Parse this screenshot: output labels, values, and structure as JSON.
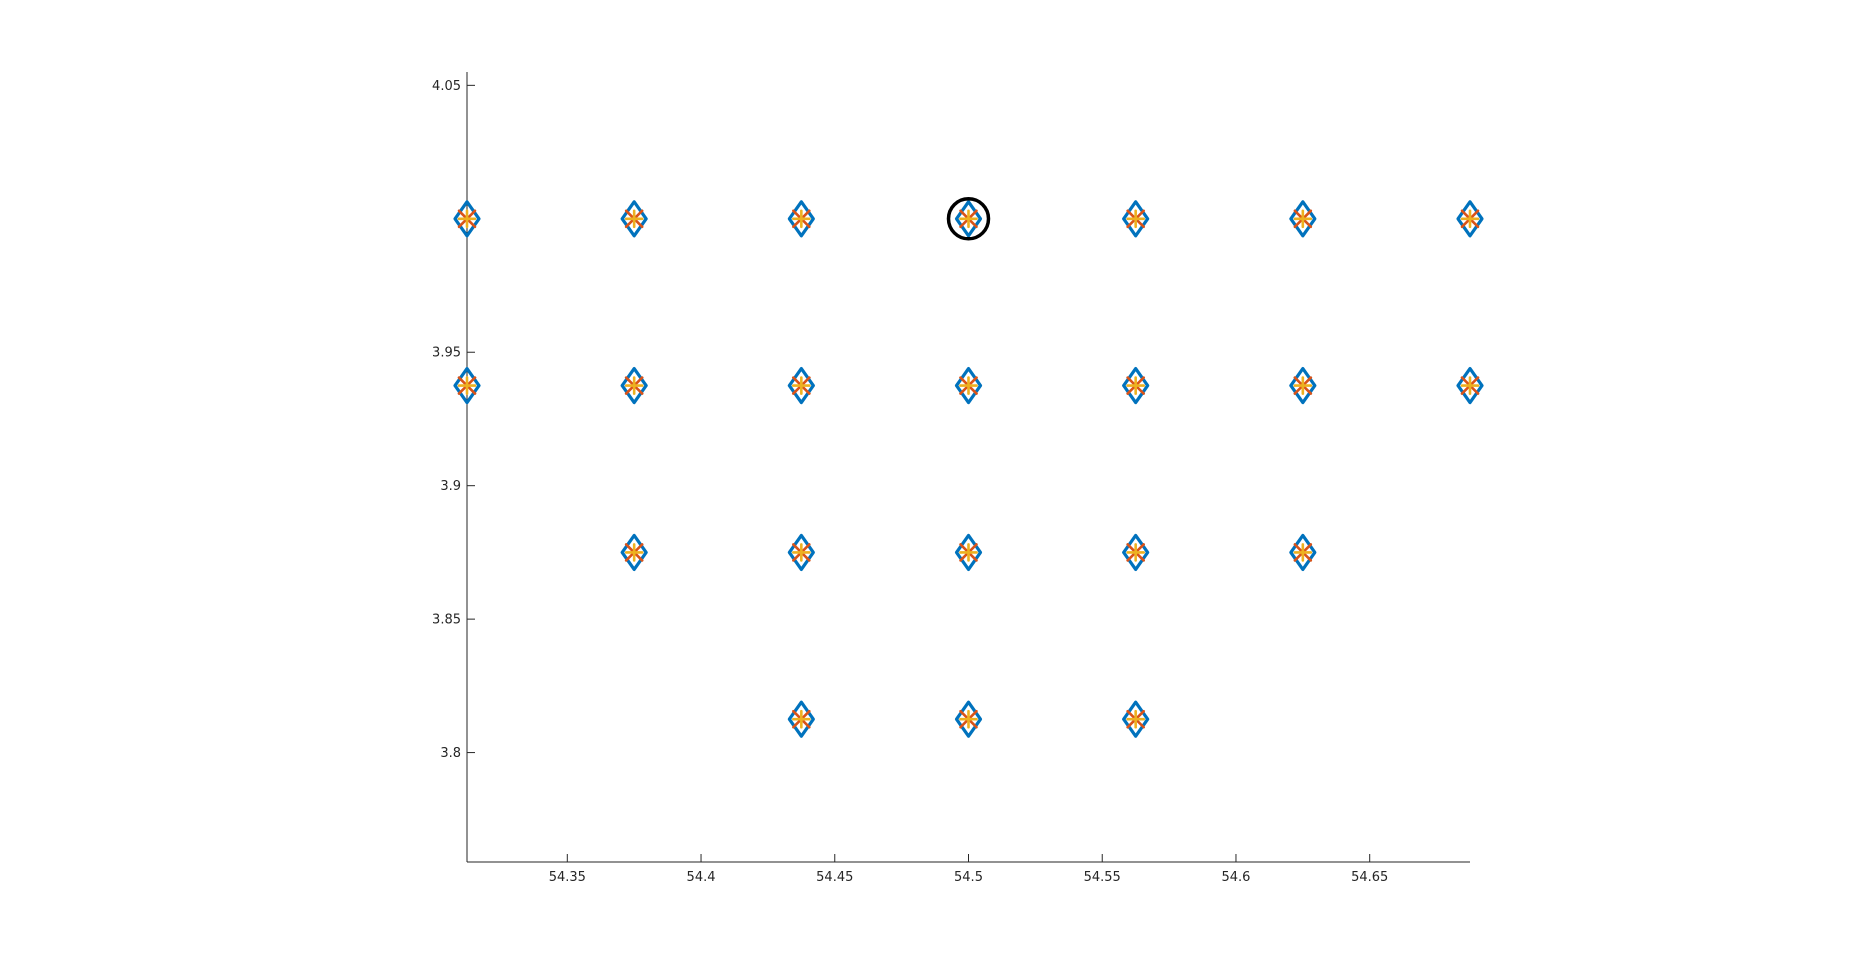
{
  "chart_data": {
    "type": "scatter",
    "title": "",
    "xlabel": "",
    "ylabel": "",
    "xlim": [
      54.3125,
      54.6875
    ],
    "ylim": [
      3.759,
      4.055
    ],
    "xticks": [
      54.35,
      54.4,
      54.45,
      54.5,
      54.55,
      54.6,
      54.65
    ],
    "xtick_labels": [
      "54.35",
      "54.4",
      "54.45",
      "54.5",
      "54.55",
      "54.6",
      "54.65"
    ],
    "yticks": [
      3.8,
      3.85,
      3.9,
      3.95,
      4.05
    ],
    "ytick_labels": [
      "3.8",
      "3.85",
      "3.9",
      "3.95",
      "4.05"
    ],
    "grid": false,
    "legend": "none",
    "series": [
      {
        "marker": "diamond",
        "color": "#0072BD",
        "points": [
          [
            54.3125,
            4.0
          ],
          [
            54.375,
            4.0
          ],
          [
            54.4375,
            4.0
          ],
          [
            54.5,
            4.0
          ],
          [
            54.5625,
            4.0
          ],
          [
            54.625,
            4.0
          ],
          [
            54.6875,
            4.0
          ],
          [
            54.3125,
            3.9375
          ],
          [
            54.375,
            3.9375
          ],
          [
            54.4375,
            3.9375
          ],
          [
            54.5,
            3.9375
          ],
          [
            54.5625,
            3.9375
          ],
          [
            54.625,
            3.9375
          ],
          [
            54.6875,
            3.9375
          ],
          [
            54.375,
            3.875
          ],
          [
            54.4375,
            3.875
          ],
          [
            54.5,
            3.875
          ],
          [
            54.5625,
            3.875
          ],
          [
            54.625,
            3.875
          ],
          [
            54.4375,
            3.8125
          ],
          [
            54.5,
            3.8125
          ],
          [
            54.5625,
            3.8125
          ]
        ]
      },
      {
        "marker": "x",
        "color": "#D95319",
        "points": [
          [
            54.3125,
            4.0
          ],
          [
            54.375,
            4.0
          ],
          [
            54.4375,
            4.0
          ],
          [
            54.5,
            4.0
          ],
          [
            54.5625,
            4.0
          ],
          [
            54.625,
            4.0
          ],
          [
            54.6875,
            4.0
          ],
          [
            54.3125,
            3.9375
          ],
          [
            54.375,
            3.9375
          ],
          [
            54.4375,
            3.9375
          ],
          [
            54.5,
            3.9375
          ],
          [
            54.5625,
            3.9375
          ],
          [
            54.625,
            3.9375
          ],
          [
            54.6875,
            3.9375
          ],
          [
            54.375,
            3.875
          ],
          [
            54.4375,
            3.875
          ],
          [
            54.5,
            3.875
          ],
          [
            54.5625,
            3.875
          ],
          [
            54.625,
            3.875
          ],
          [
            54.4375,
            3.8125
          ],
          [
            54.5,
            3.8125
          ],
          [
            54.5625,
            3.8125
          ]
        ]
      },
      {
        "marker": "plus",
        "color": "#EDB120",
        "points": [
          [
            54.3125,
            4.0
          ],
          [
            54.375,
            4.0
          ],
          [
            54.4375,
            4.0
          ],
          [
            54.5,
            4.0
          ],
          [
            54.5625,
            4.0
          ],
          [
            54.625,
            4.0
          ],
          [
            54.6875,
            4.0
          ],
          [
            54.3125,
            3.9375
          ],
          [
            54.375,
            3.9375
          ],
          [
            54.4375,
            3.9375
          ],
          [
            54.5,
            3.9375
          ],
          [
            54.5625,
            3.9375
          ],
          [
            54.625,
            3.9375
          ],
          [
            54.6875,
            3.9375
          ],
          [
            54.375,
            3.875
          ],
          [
            54.4375,
            3.875
          ],
          [
            54.5,
            3.875
          ],
          [
            54.5625,
            3.875
          ],
          [
            54.625,
            3.875
          ],
          [
            54.4375,
            3.8125
          ],
          [
            54.5,
            3.8125
          ],
          [
            54.5625,
            3.8125
          ]
        ]
      },
      {
        "marker": "circle",
        "color": "#000000",
        "points": [
          [
            54.5,
            4.0
          ]
        ]
      }
    ]
  }
}
